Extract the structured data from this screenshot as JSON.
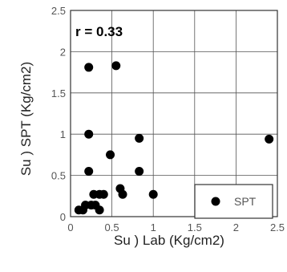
{
  "chart_data": {
    "type": "scatter",
    "title": "",
    "xlabel": "Su ) Lab (Kg/cm2)",
    "ylabel": "Su ) SPT (Kg/cm2)",
    "xlim": [
      0,
      2.5
    ],
    "ylim": [
      0,
      2.5
    ],
    "xticks": [
      "0",
      "0.5",
      "1",
      "1.5",
      "2",
      "2.5"
    ],
    "yticks": [
      "0",
      "0.5",
      "1",
      "1.5",
      "2",
      "2.5"
    ],
    "grid": true,
    "legend_position": "bottom-right",
    "annotation": "r = 0.33",
    "series": [
      {
        "name": "SPT",
        "color": "#000000",
        "points": [
          {
            "x": 0.1,
            "y": 0.08
          },
          {
            "x": 0.15,
            "y": 0.08
          },
          {
            "x": 0.18,
            "y": 0.14
          },
          {
            "x": 0.22,
            "y": 0.55
          },
          {
            "x": 0.22,
            "y": 1.0
          },
          {
            "x": 0.22,
            "y": 1.81
          },
          {
            "x": 0.25,
            "y": 0.14
          },
          {
            "x": 0.28,
            "y": 0.27
          },
          {
            "x": 0.3,
            "y": 0.14
          },
          {
            "x": 0.35,
            "y": 0.27
          },
          {
            "x": 0.35,
            "y": 0.08
          },
          {
            "x": 0.4,
            "y": 0.27
          },
          {
            "x": 0.48,
            "y": 0.75
          },
          {
            "x": 0.55,
            "y": 1.83
          },
          {
            "x": 0.6,
            "y": 0.34
          },
          {
            "x": 0.63,
            "y": 0.27
          },
          {
            "x": 0.83,
            "y": 0.95
          },
          {
            "x": 0.83,
            "y": 0.55
          },
          {
            "x": 1.0,
            "y": 0.27
          },
          {
            "x": 2.4,
            "y": 0.94
          }
        ]
      }
    ]
  }
}
